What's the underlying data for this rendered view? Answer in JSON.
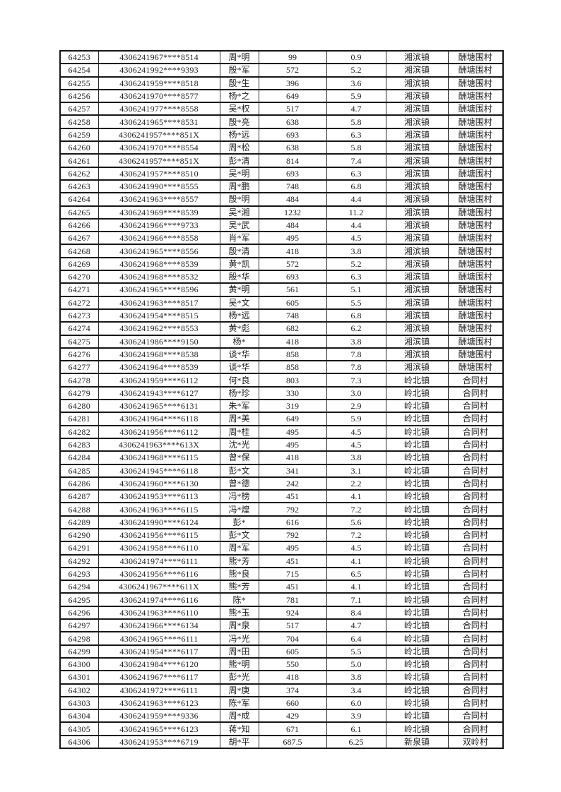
{
  "page": {
    "background_color": "#ffffff",
    "text_color": "#1f1f1f",
    "border_color": "#161616"
  },
  "table": {
    "rows": [
      [
        "64253",
        "4306241967****8514",
        "周*明",
        "99",
        "0.9",
        "湘滨镇",
        "酬塘围村"
      ],
      [
        "64254",
        "4306241992****9393",
        "殷*军",
        "572",
        "5.2",
        "湘滨镇",
        "酬塘围村"
      ],
      [
        "64255",
        "4306241959****8518",
        "殷*生",
        "396",
        "3.6",
        "湘滨镇",
        "酬塘围村"
      ],
      [
        "64256",
        "4306241970****8577",
        "杨*之",
        "649",
        "5.9",
        "湘滨镇",
        "酬塘围村"
      ],
      [
        "64257",
        "4306241977****8558",
        "吴*权",
        "517",
        "4.7",
        "湘滨镇",
        "酬塘围村"
      ],
      [
        "64258",
        "4306241965****8531",
        "殷*亮",
        "638",
        "5.8",
        "湘滨镇",
        "酬塘围村"
      ],
      [
        "64259",
        "4306241957****851X",
        "杨*远",
        "693",
        "6.3",
        "湘滨镇",
        "酬塘围村"
      ],
      [
        "64260",
        "4306241970****8554",
        "周*松",
        "638",
        "5.8",
        "湘滨镇",
        "酬塘围村"
      ],
      [
        "64261",
        "4306241957****851X",
        "彭*清",
        "814",
        "7.4",
        "湘滨镇",
        "酬塘围村"
      ],
      [
        "64262",
        "4306241957****8510",
        "吴*明",
        "693",
        "6.3",
        "湘滨镇",
        "酬塘围村"
      ],
      [
        "64263",
        "4306241990****8555",
        "周*鹏",
        "748",
        "6.8",
        "湘滨镇",
        "酬塘围村"
      ],
      [
        "64264",
        "4306241963****8557",
        "殷*明",
        "484",
        "4.4",
        "湘滨镇",
        "酬塘围村"
      ],
      [
        "64265",
        "4306241969****8539",
        "吴*湘",
        "1232",
        "11.2",
        "湘滨镇",
        "酬塘围村"
      ],
      [
        "64266",
        "4306241966****9733",
        "吴*武",
        "484",
        "4.4",
        "湘滨镇",
        "酬塘围村"
      ],
      [
        "64267",
        "4306241966****8558",
        "肖*军",
        "495",
        "4.5",
        "湘滨镇",
        "酬塘围村"
      ],
      [
        "64268",
        "4306241965****8556",
        "殷*清",
        "418",
        "3.8",
        "湘滨镇",
        "酬塘围村"
      ],
      [
        "64269",
        "4306241968****8539",
        "黄*凯",
        "572",
        "5.2",
        "湘滨镇",
        "酬塘围村"
      ],
      [
        "64270",
        "4306241968****8532",
        "殷*华",
        "693",
        "6.3",
        "湘滨镇",
        "酬塘围村"
      ],
      [
        "64271",
        "4306241965****8596",
        "黄*明",
        "561",
        "5.1",
        "湘滨镇",
        "酬塘围村"
      ],
      [
        "64272",
        "4306241963****8517",
        "吴*文",
        "605",
        "5.5",
        "湘滨镇",
        "酬塘围村"
      ],
      [
        "64273",
        "4306241954****8515",
        "杨*远",
        "748",
        "6.8",
        "湘滨镇",
        "酬塘围村"
      ],
      [
        "64274",
        "4306241962****8553",
        "黄*彪",
        "682",
        "6.2",
        "湘滨镇",
        "酬塘围村"
      ],
      [
        "64275",
        "4306241986****9150",
        "杨*",
        "418",
        "3.8",
        "湘滨镇",
        "酬塘围村"
      ],
      [
        "64276",
        "4306241968****8538",
        "谈*华",
        "858",
        "7.8",
        "湘滨镇",
        "酬塘围村"
      ],
      [
        "64277",
        "4306241964****8539",
        "谈*华",
        "858",
        "7.8",
        "湘滨镇",
        "酬塘围村"
      ],
      [
        "64278",
        "4306241959****6112",
        "何*良",
        "803",
        "7.3",
        "岭北镇",
        "合同村"
      ],
      [
        "64279",
        "4306241943****6127",
        "杨*珍",
        "330",
        "3.0",
        "岭北镇",
        "合同村"
      ],
      [
        "64280",
        "4306241965****6131",
        "朱*军",
        "319",
        "2.9",
        "岭北镇",
        "合同村"
      ],
      [
        "64281",
        "4306241964****6118",
        "周*美",
        "649",
        "5.9",
        "岭北镇",
        "合同村"
      ],
      [
        "64282",
        "4306241956****6112",
        "周*桂",
        "495",
        "4.5",
        "岭北镇",
        "合同村"
      ],
      [
        "64283",
        "4306241963****613X",
        "沈*光",
        "495",
        "4.5",
        "岭北镇",
        "合同村"
      ],
      [
        "64284",
        "4306241968****6115",
        "曾*保",
        "418",
        "3.8",
        "岭北镇",
        "合同村"
      ],
      [
        "64285",
        "4306241945****6118",
        "彭*文",
        "341",
        "3.1",
        "岭北镇",
        "合同村"
      ],
      [
        "64286",
        "4306241960****6130",
        "曾*德",
        "242",
        "2.2",
        "岭北镇",
        "合同村"
      ],
      [
        "64287",
        "4306241953****6113",
        "冯*榜",
        "451",
        "4.1",
        "岭北镇",
        "合同村"
      ],
      [
        "64288",
        "4306241963****6115",
        "冯*煌",
        "792",
        "7.2",
        "岭北镇",
        "合同村"
      ],
      [
        "64289",
        "4306241990****6124",
        "彭*",
        "616",
        "5.6",
        "岭北镇",
        "合同村"
      ],
      [
        "64290",
        "4306241956****6115",
        "彭*文",
        "792",
        "7.2",
        "岭北镇",
        "合同村"
      ],
      [
        "64291",
        "4306241958****6110",
        "周*军",
        "495",
        "4.5",
        "岭北镇",
        "合同村"
      ],
      [
        "64292",
        "4306241974****6111",
        "熊*芳",
        "451",
        "4.1",
        "岭北镇",
        "合同村"
      ],
      [
        "64293",
        "4306241956****6116",
        "熊*良",
        "715",
        "6.5",
        "岭北镇",
        "合同村"
      ],
      [
        "64294",
        "4306241967****611X",
        "熊*芳",
        "451",
        "4.1",
        "岭北镇",
        "合同村"
      ],
      [
        "64295",
        "4306241974****6116",
        "陈*",
        "781",
        "7.1",
        "岭北镇",
        "合同村"
      ],
      [
        "64296",
        "4306241963****6110",
        "熊*玉",
        "924",
        "8.4",
        "岭北镇",
        "合同村"
      ],
      [
        "64297",
        "4306241966****6134",
        "周*泉",
        "517",
        "4.7",
        "岭北镇",
        "合同村"
      ],
      [
        "64298",
        "4306241965****6111",
        "冯*光",
        "704",
        "6.4",
        "岭北镇",
        "合同村"
      ],
      [
        "64299",
        "4306241954****6117",
        "周*田",
        "605",
        "5.5",
        "岭北镇",
        "合同村"
      ],
      [
        "64300",
        "4306241984****6120",
        "熊*明",
        "550",
        "5.0",
        "岭北镇",
        "合同村"
      ],
      [
        "64301",
        "4306241967****6117",
        "彭*光",
        "418",
        "3.8",
        "岭北镇",
        "合同村"
      ],
      [
        "64302",
        "4306241972****6111",
        "周*庚",
        "374",
        "3.4",
        "岭北镇",
        "合同村"
      ],
      [
        "64303",
        "4306241963****6123",
        "陈*军",
        "660",
        "6.0",
        "岭北镇",
        "合同村"
      ],
      [
        "64304",
        "4306241959****9336",
        "周*成",
        "429",
        "3.9",
        "岭北镇",
        "合同村"
      ],
      [
        "64305",
        "4306241965****6123",
        "蒋*知",
        "671",
        "6.1",
        "岭北镇",
        "合同村"
      ],
      [
        "64306",
        "4306241953****6719",
        "胡*平",
        "687.5",
        "6.25",
        "新泉镇",
        "双岭村"
      ]
    ]
  }
}
